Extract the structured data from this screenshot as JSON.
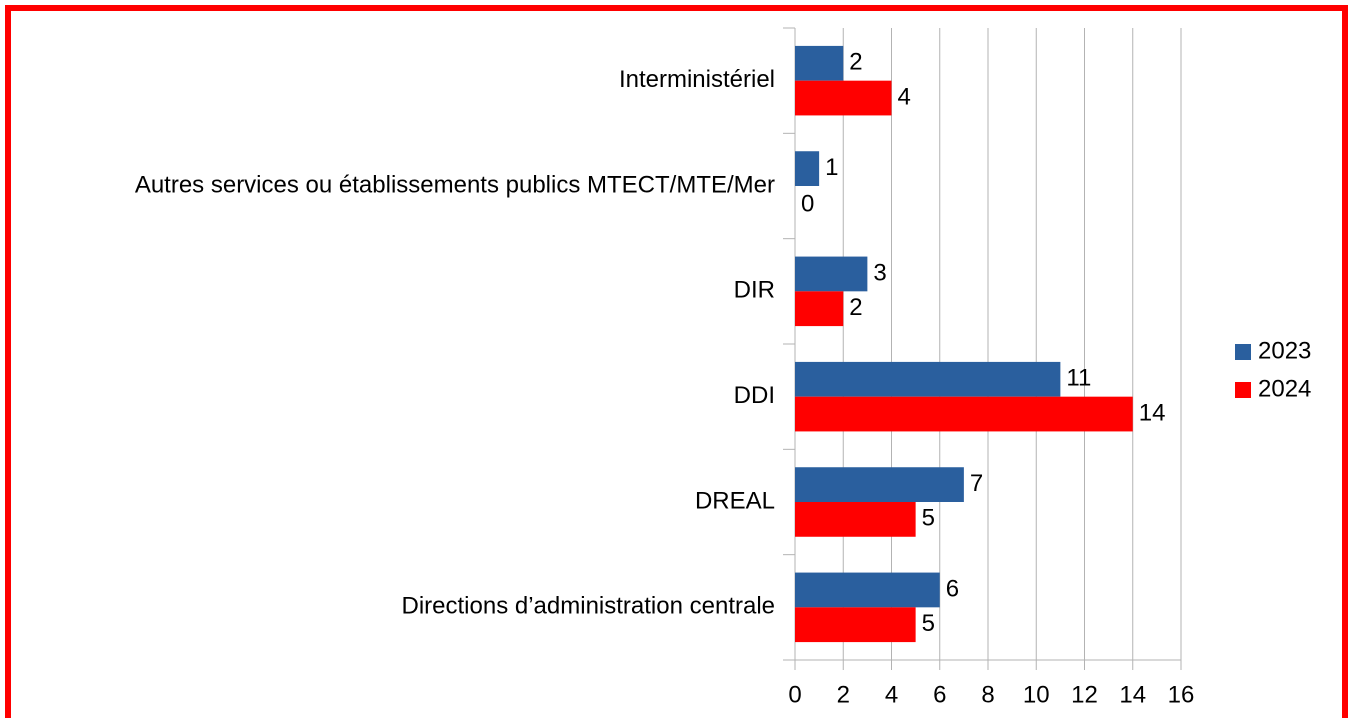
{
  "chart_data": {
    "type": "bar",
    "orientation": "horizontal",
    "categories": [
      "Interministériel",
      "Autres services ou établissements publics MTECT/MTE/Mer",
      "DIR",
      "DDI",
      "DREAL",
      "Directions d’administration centrale"
    ],
    "series": [
      {
        "name": "2023",
        "color": "#2a5f9e",
        "values": [
          2,
          1,
          3,
          11,
          7,
          6
        ]
      },
      {
        "name": "2024",
        "color": "#ff0000",
        "values": [
          4,
          0,
          2,
          14,
          5,
          5
        ]
      }
    ],
    "xlim": [
      0,
      16
    ],
    "xticks": [
      0,
      2,
      4,
      6,
      8,
      10,
      12,
      14,
      16
    ],
    "grid": true,
    "legend": "right"
  }
}
